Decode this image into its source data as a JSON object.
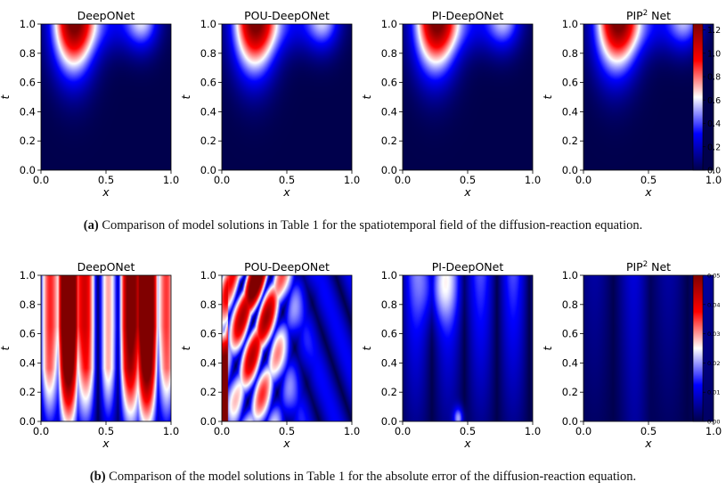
{
  "figure": {
    "rows": [
      {
        "id": "a",
        "caption_label": "(a)",
        "caption_text": "Comparison of model solutions in Table 1 for the spatiotemporal field of the diffusion-reaction equation.",
        "field": "solution",
        "colorbar": {
          "vmin": 0.0,
          "vmax": 1.25,
          "ticks": [
            0.0,
            0.2,
            0.4,
            0.6,
            0.8,
            1.0,
            1.2
          ],
          "tick_labels": [
            "0.0",
            "0.2",
            "0.4",
            "0.6",
            "0.8",
            "1.0",
            "1.2"
          ]
        }
      },
      {
        "id": "b",
        "caption_label": "(b)",
        "caption_text": "Comparison of the model solutions in Table 1 for the absolute error of the diffusion-reaction equation.",
        "field": "error",
        "colorbar": {
          "vmin": 0.0,
          "vmax": 0.05,
          "ticks": [
            0.0,
            0.01,
            0.02,
            0.03,
            0.04,
            0.05
          ],
          "tick_labels": [
            "0.00",
            "0.01",
            "0.02",
            "0.03",
            "0.04",
            "0.05"
          ]
        }
      }
    ],
    "models": [
      "DeepONet",
      "POU-DeepONet",
      "PI-DeepONet",
      "PIP2 Net"
    ],
    "model_titles": [
      {
        "base": "DeepONet",
        "sup": ""
      },
      {
        "base": "POU-DeepONet",
        "sup": ""
      },
      {
        "base": "PI-DeepONet",
        "sup": ""
      },
      {
        "base": "PIP",
        "sup": "2",
        "tail": " Net"
      }
    ]
  },
  "chart_data": [
    {
      "type": "heatmap",
      "title": "Spatiotemporal field of the diffusion-reaction equation",
      "xlabel": "x",
      "ylabel": "t",
      "xlim": [
        0.0,
        1.0
      ],
      "ylim": [
        0.0,
        1.0
      ],
      "xticks": [
        0.0,
        0.5,
        1.0
      ],
      "xtick_labels": [
        "0.0",
        "0.5",
        "1.0"
      ],
      "yticks": [
        0.0,
        0.2,
        0.4,
        0.6,
        0.8,
        1.0
      ],
      "ytick_labels": [
        "0.0",
        "0.2",
        "0.4",
        "0.6",
        "0.8",
        "1.0"
      ],
      "colormap": "seismic",
      "panels": [
        "DeepONet",
        "POU-DeepONet",
        "PI-DeepONet",
        "PIP2 Net"
      ],
      "features": {
        "peak_value": 1.2,
        "peak_x": 0.25,
        "peak_t": 1.0,
        "secondary_bump_x": 0.8
      }
    },
    {
      "type": "heatmap",
      "title": "Absolute error of the diffusion-reaction equation",
      "xlabel": "x",
      "ylabel": "t",
      "xlim": [
        0.0,
        1.0
      ],
      "ylim": [
        0.0,
        1.0
      ],
      "xticks": [
        0.0,
        0.5,
        1.0
      ],
      "xtick_labels": [
        "0.0",
        "0.5",
        "1.0"
      ],
      "yticks": [
        0.0,
        0.2,
        0.4,
        0.6,
        0.8,
        1.0
      ],
      "ytick_labels": [
        "0.0",
        "0.2",
        "0.4",
        "0.6",
        "0.8",
        "1.0"
      ],
      "colormap": "seismic",
      "panels": [
        "DeepONet",
        "POU-DeepONet",
        "PI-DeepONet",
        "PIP2 Net"
      ],
      "error_scale": [
        1.0,
        0.85,
        0.35,
        0.15
      ]
    }
  ],
  "colors": {
    "blue_dark": "#00004c",
    "blue": "#0000ff",
    "white": "#ffffff",
    "red": "#ff0000",
    "red_dark": "#800000"
  }
}
